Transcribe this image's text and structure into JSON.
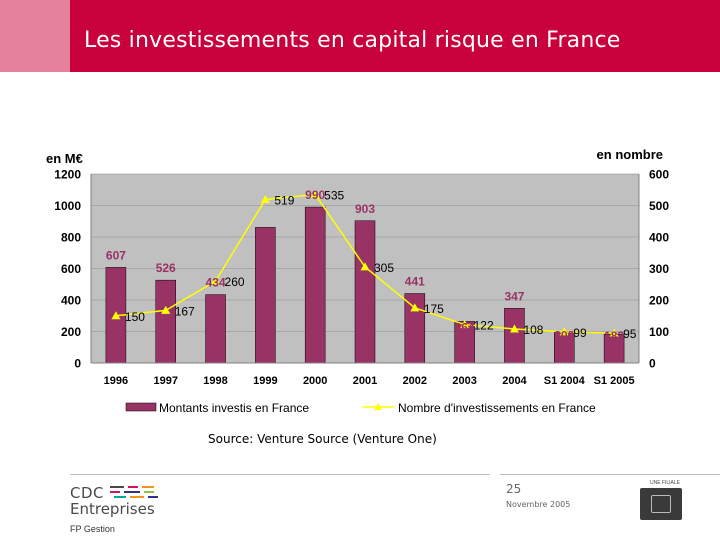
{
  "slide": {
    "title": "Les investissements en capital risque en France",
    "source": "Source: Venture Source (Venture One)",
    "page_number": "25",
    "date": "Novembre 2005"
  },
  "footer": {
    "logo_line1": "CDC",
    "logo_line2": "Entreprises",
    "logo_sub": "FP Gestion",
    "filiale_label": "UNE FILIALE",
    "seal_alt": "Caisse des Dépôts"
  },
  "colors": {
    "header": "#c8003c",
    "header_accent": "#e6819d",
    "bar": "#993366",
    "line": "#ffff00",
    "plot_bg": "#c0c0c0",
    "bar_label": "#993366"
  },
  "chart_data": {
    "type": "bar",
    "categories": [
      "1996",
      "1997",
      "1998",
      "1999",
      "2000",
      "2001",
      "2002",
      "2003",
      "2004",
      "S1 2004",
      "S1 2005"
    ],
    "ylabel_left": "en M€",
    "ylabel_right": "en nombre",
    "ylim_left": [
      0,
      1200
    ],
    "ylim_right": [
      0,
      600
    ],
    "yticks_left": [
      0,
      200,
      400,
      600,
      800,
      1000,
      1200
    ],
    "yticks_right": [
      0,
      100,
      200,
      300,
      400,
      500,
      600
    ],
    "grid": true,
    "legend_position": "bottom",
    "series": [
      {
        "name": "Montants investis en France",
        "type": "bar",
        "axis": "left",
        "values": [
          607,
          526,
          434,
          861,
          990,
          903,
          441,
          264,
          347,
          200,
          183
        ]
      },
      {
        "name": "Nombre d'investissements en France",
        "type": "line",
        "axis": "right",
        "values": [
          150,
          167,
          260,
          519,
          535,
          305,
          175,
          122,
          108,
          99,
          95
        ]
      }
    ]
  }
}
